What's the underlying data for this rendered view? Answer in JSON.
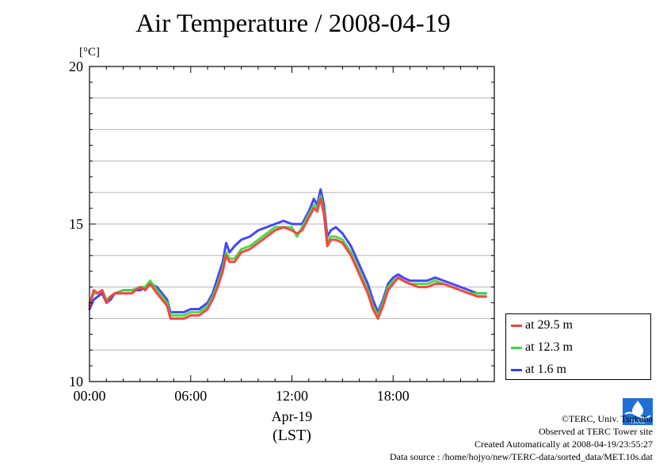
{
  "chart_data": {
    "type": "line",
    "title": "Air Temperature / 2008-04-19",
    "ylabel": "[°C]",
    "xlabel": "Apr-19",
    "xlabel_sub": "(LST)",
    "ylim": [
      10,
      20
    ],
    "xlim": [
      0,
      24
    ],
    "yticks": [
      10,
      15,
      20
    ],
    "xticks": [
      {
        "value": 0,
        "label": "00:00"
      },
      {
        "value": 6,
        "label": "06:00"
      },
      {
        "value": 12,
        "label": "12:00"
      },
      {
        "value": 18,
        "label": "18:00"
      }
    ],
    "grid": true,
    "legend_position": "bottom-right outside",
    "series": [
      {
        "name": "at 29.5 m",
        "color": "#ff3b3b",
        "x": [
          0,
          0.25,
          0.5,
          0.75,
          1,
          1.25,
          1.5,
          2,
          2.5,
          3,
          3.3,
          3.6,
          4,
          4.3,
          4.6,
          4.8,
          5,
          5.3,
          5.6,
          6,
          6.5,
          7,
          7.3,
          7.6,
          7.9,
          8.1,
          8.3,
          8.6,
          9,
          9.5,
          10,
          10.5,
          11,
          11.5,
          12,
          12.3,
          12.6,
          13,
          13.3,
          13.5,
          13.7,
          13.9,
          14.1,
          14.3,
          14.6,
          15,
          15.5,
          16,
          16.5,
          16.8,
          17.1,
          17.4,
          17.7,
          18,
          18.3,
          18.6,
          19,
          19.5,
          20,
          20.5,
          21,
          21.5,
          22,
          22.5,
          23,
          23.5
        ],
        "y": [
          12.4,
          12.9,
          12.8,
          12.9,
          12.5,
          12.7,
          12.8,
          12.8,
          12.8,
          13.0,
          12.9,
          13.1,
          12.8,
          12.6,
          12.4,
          12.0,
          12.0,
          12.0,
          12.0,
          12.1,
          12.1,
          12.3,
          12.6,
          13.0,
          13.5,
          14.0,
          13.8,
          13.8,
          14.1,
          14.2,
          14.4,
          14.6,
          14.8,
          14.9,
          14.8,
          14.7,
          14.8,
          15.2,
          15.5,
          15.4,
          15.8,
          15.3,
          14.3,
          14.5,
          14.5,
          14.4,
          14.0,
          13.4,
          12.8,
          12.3,
          12.0,
          12.4,
          12.9,
          13.1,
          13.3,
          13.2,
          13.1,
          13.0,
          13.0,
          13.1,
          13.1,
          13.0,
          12.9,
          12.8,
          12.7,
          12.7
        ]
      },
      {
        "name": "at 12.3 m",
        "color": "#3bdc3b",
        "x": [
          0,
          0.25,
          0.5,
          0.75,
          1,
          1.25,
          1.5,
          2,
          2.5,
          3,
          3.3,
          3.6,
          4,
          4.3,
          4.6,
          4.8,
          5,
          5.3,
          5.6,
          6,
          6.5,
          7,
          7.3,
          7.6,
          7.9,
          8.1,
          8.3,
          8.6,
          9,
          9.5,
          10,
          10.5,
          11,
          11.5,
          12,
          12.3,
          12.6,
          13,
          13.3,
          13.5,
          13.7,
          13.9,
          14.1,
          14.3,
          14.6,
          15,
          15.5,
          16,
          16.5,
          16.8,
          17.1,
          17.4,
          17.7,
          18,
          18.3,
          18.6,
          19,
          19.5,
          20,
          20.5,
          21,
          21.5,
          22,
          22.5,
          23,
          23.5
        ],
        "y": [
          12.5,
          12.8,
          12.8,
          12.9,
          12.6,
          12.7,
          12.8,
          12.9,
          12.9,
          13.0,
          13.0,
          13.2,
          12.9,
          12.7,
          12.5,
          12.1,
          12.1,
          12.1,
          12.1,
          12.2,
          12.2,
          12.4,
          12.7,
          13.1,
          13.6,
          14.1,
          13.9,
          13.9,
          14.2,
          14.3,
          14.5,
          14.7,
          14.9,
          14.9,
          14.9,
          14.6,
          14.9,
          15.3,
          15.6,
          15.5,
          15.9,
          15.4,
          14.4,
          14.6,
          14.6,
          14.5,
          14.1,
          13.5,
          12.9,
          12.4,
          12.1,
          12.5,
          13.0,
          13.2,
          13.3,
          13.2,
          13.1,
          13.1,
          13.1,
          13.2,
          13.1,
          13.0,
          12.9,
          12.8,
          12.8,
          12.8
        ]
      },
      {
        "name": "at 1.6 m",
        "color": "#3b3bff",
        "x": [
          0,
          0.25,
          0.5,
          0.75,
          1,
          1.25,
          1.5,
          2,
          2.5,
          3,
          3.3,
          3.6,
          4,
          4.3,
          4.6,
          4.8,
          5,
          5.3,
          5.6,
          6,
          6.5,
          7,
          7.3,
          7.6,
          7.9,
          8.1,
          8.3,
          8.6,
          9,
          9.5,
          10,
          10.5,
          11,
          11.5,
          12,
          12.3,
          12.6,
          13,
          13.3,
          13.5,
          13.7,
          13.9,
          14.1,
          14.3,
          14.6,
          15,
          15.5,
          16,
          16.5,
          16.8,
          17.1,
          17.4,
          17.7,
          18,
          18.3,
          18.6,
          19,
          19.5,
          20,
          20.5,
          21,
          21.5,
          22,
          22.5,
          23,
          23.5
        ],
        "y": [
          12.3,
          12.6,
          12.7,
          12.8,
          12.5,
          12.6,
          12.8,
          12.9,
          12.9,
          12.9,
          13.0,
          13.1,
          13.0,
          12.8,
          12.6,
          12.2,
          12.2,
          12.2,
          12.2,
          12.3,
          12.3,
          12.5,
          12.8,
          13.3,
          13.8,
          14.4,
          14.1,
          14.3,
          14.5,
          14.6,
          14.8,
          14.9,
          15.0,
          15.1,
          15.0,
          15.0,
          15.0,
          15.4,
          15.8,
          15.6,
          16.1,
          15.6,
          14.6,
          14.8,
          14.9,
          14.7,
          14.3,
          13.7,
          13.1,
          12.6,
          12.2,
          12.6,
          13.1,
          13.3,
          13.4,
          13.3,
          13.2,
          13.2,
          13.2,
          13.3,
          13.2,
          13.1,
          13.0,
          12.9,
          12.8,
          12.8
        ]
      }
    ]
  },
  "credits": {
    "copyright": "©TERC, Univ. Tsukuba",
    "observed": "Observed at TERC Tower site",
    "created": "Created Automatically at 2008-04-19/23:55:27",
    "source": "Data source : /home/hojyo/new/TERC-data/sorted_data/MET.10s.dat"
  },
  "logo": {
    "text": "TERC"
  }
}
